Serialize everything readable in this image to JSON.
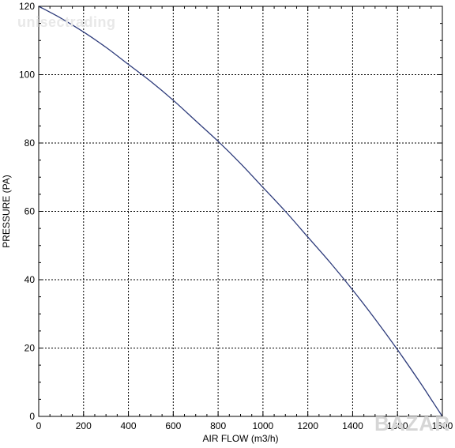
{
  "watermarks": {
    "top": "unisectrading",
    "logo": "BAZAR"
  },
  "colors": {
    "curve": "#2c3a7a",
    "axis": "#000000",
    "grid": "#000000"
  },
  "chart_data": {
    "type": "line",
    "title": "",
    "xlabel": "AIR FLOW (m3/h)",
    "ylabel": "PRESSURE (PA)",
    "xlim": [
      0,
      1800
    ],
    "ylim": [
      0,
      120
    ],
    "xticks": [
      0,
      200,
      400,
      600,
      800,
      1000,
      1200,
      1400,
      1600,
      1800
    ],
    "yticks": [
      0,
      20,
      40,
      60,
      80,
      100,
      120
    ],
    "grid": true,
    "legend": "none",
    "series": [
      {
        "x": [
          0,
          100,
          200,
          300,
          400,
          500,
          600,
          700,
          800,
          900,
          1000,
          1100,
          1200,
          1300,
          1400,
          1500,
          1600,
          1700,
          1760,
          1800
        ],
        "y": [
          120,
          116.5,
          112.5,
          108,
          103,
          98,
          92.5,
          86.5,
          80.5,
          74,
          67,
          60,
          52.5,
          45,
          37,
          28.5,
          19.5,
          10,
          4,
          0
        ]
      }
    ]
  }
}
